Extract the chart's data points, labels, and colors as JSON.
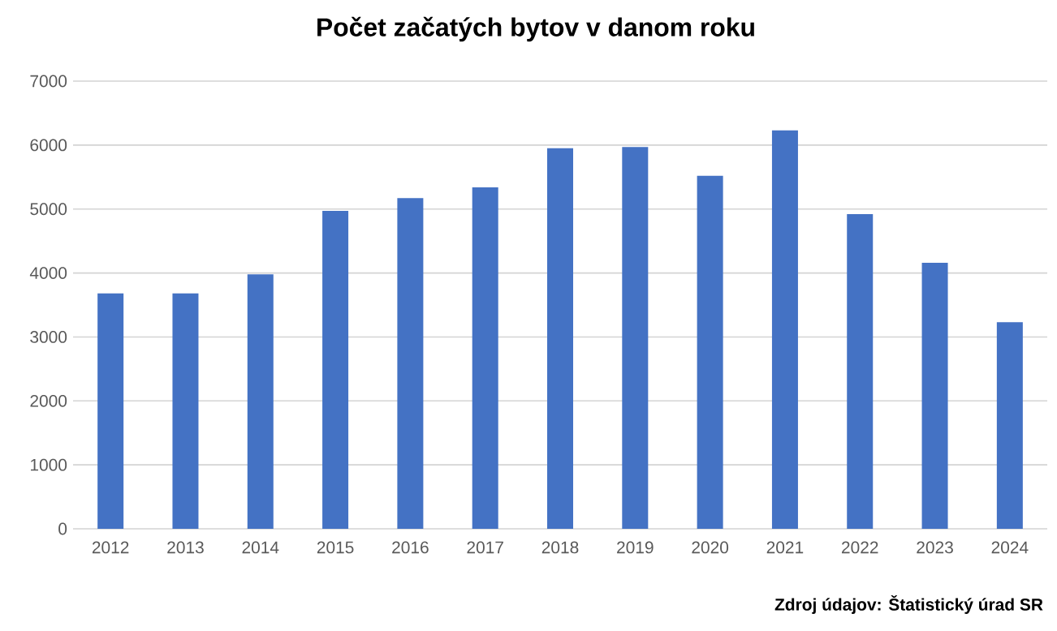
{
  "chart_data": {
    "type": "bar",
    "title": "Počet začatých bytov v danom roku",
    "categories": [
      "2012",
      "2013",
      "2014",
      "2015",
      "2016",
      "2017",
      "2018",
      "2019",
      "2020",
      "2021",
      "2022",
      "2023",
      "2024"
    ],
    "values": [
      3680,
      3680,
      3980,
      4970,
      5170,
      5340,
      5950,
      5970,
      5520,
      6230,
      4920,
      4160,
      3230
    ],
    "color": "#4472c4",
    "ylim": [
      0,
      7000
    ],
    "yticks": [
      0,
      1000,
      2000,
      3000,
      4000,
      5000,
      6000,
      7000
    ],
    "grid": "y",
    "annotations": [
      "Zdroj údajov: Štatistický úrad SR"
    ]
  }
}
